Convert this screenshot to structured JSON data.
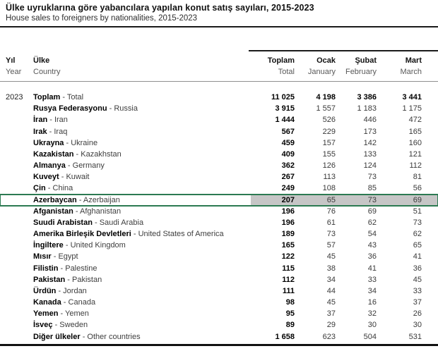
{
  "title_tr": "Ülke uyruklarına göre yabancılara yapılan konut satış sayıları, 2015-2023",
  "title_en": "House sales to foreigners by nationalities, 2015-2023",
  "table": {
    "year": "2023",
    "separator": " - ",
    "header": {
      "year_tr": "Yıl",
      "year_en": "Year",
      "country_tr": "Ülke",
      "country_en": "Country",
      "columns": [
        {
          "tr": "Toplam",
          "en": "Total"
        },
        {
          "tr": "Ocak",
          "en": "January"
        },
        {
          "tr": "Şubat",
          "en": "February"
        },
        {
          "tr": "Mart",
          "en": "March"
        }
      ]
    },
    "rows": [
      {
        "tr": "Toplam",
        "en": "Total",
        "values": [
          "11 025",
          "4 198",
          "3 386",
          "3 441"
        ],
        "is_total": true,
        "show_year": true
      },
      {
        "tr": "Rusya Federasyonu",
        "en": "Russia",
        "values": [
          "3 915",
          "1 557",
          "1 183",
          "1 175"
        ]
      },
      {
        "tr": "İran",
        "en": "Iran",
        "values": [
          "1 444",
          "526",
          "446",
          "472"
        ]
      },
      {
        "tr": "Irak",
        "en": "Iraq",
        "values": [
          "567",
          "229",
          "173",
          "165"
        ]
      },
      {
        "tr": "Ukrayna",
        "en": "Ukraine",
        "values": [
          "459",
          "157",
          "142",
          "160"
        ]
      },
      {
        "tr": "Kazakistan",
        "en": "Kazakhstan",
        "values": [
          "409",
          "155",
          "133",
          "121"
        ]
      },
      {
        "tr": "Almanya",
        "en": "Germany",
        "values": [
          "362",
          "126",
          "124",
          "112"
        ]
      },
      {
        "tr": "Kuveyt",
        "en": "Kuwait",
        "values": [
          "267",
          "113",
          "73",
          "81"
        ]
      },
      {
        "tr": "Çin",
        "en": "China",
        "values": [
          "249",
          "108",
          "85",
          "56"
        ]
      },
      {
        "tr": "Azerbaycan",
        "en": "Azerbaijan",
        "values": [
          "207",
          "65",
          "73",
          "69"
        ],
        "highlight": true
      },
      {
        "tr": "Afganistan",
        "en": "Afghanistan",
        "values": [
          "196",
          "76",
          "69",
          "51"
        ]
      },
      {
        "tr": "Suudi Arabistan",
        "en": "Saudi Arabia",
        "values": [
          "196",
          "61",
          "62",
          "73"
        ]
      },
      {
        "tr": "Amerika Birleşik Devletleri",
        "en": "United States of America",
        "values": [
          "189",
          "73",
          "54",
          "62"
        ]
      },
      {
        "tr": "İngiltere",
        "en": "United Kingdom",
        "values": [
          "165",
          "57",
          "43",
          "65"
        ]
      },
      {
        "tr": "Mısır",
        "en": "Egypt",
        "values": [
          "122",
          "45",
          "36",
          "41"
        ]
      },
      {
        "tr": "Filistin",
        "en": "Palestine",
        "values": [
          "115",
          "38",
          "41",
          "36"
        ]
      },
      {
        "tr": "Pakistan",
        "en": "Pakistan",
        "values": [
          "112",
          "34",
          "33",
          "45"
        ]
      },
      {
        "tr": "Ürdün",
        "en": "Jordan",
        "values": [
          "111",
          "44",
          "34",
          "33"
        ]
      },
      {
        "tr": "Kanada",
        "en": "Canada",
        "values": [
          "98",
          "45",
          "16",
          "37"
        ]
      },
      {
        "tr": "Yemen",
        "en": "Yemen",
        "values": [
          "95",
          "37",
          "32",
          "26"
        ]
      },
      {
        "tr": "İsveç",
        "en": "Sweden",
        "values": [
          "89",
          "29",
          "30",
          "30"
        ]
      },
      {
        "tr": "Diğer ülkeler",
        "en": "Other countries",
        "values": [
          "1 658",
          "623",
          "504",
          "531"
        ]
      }
    ]
  },
  "colors": {
    "highlight_fill": "#c6c6c6",
    "highlight_border": "#2c7a52"
  }
}
